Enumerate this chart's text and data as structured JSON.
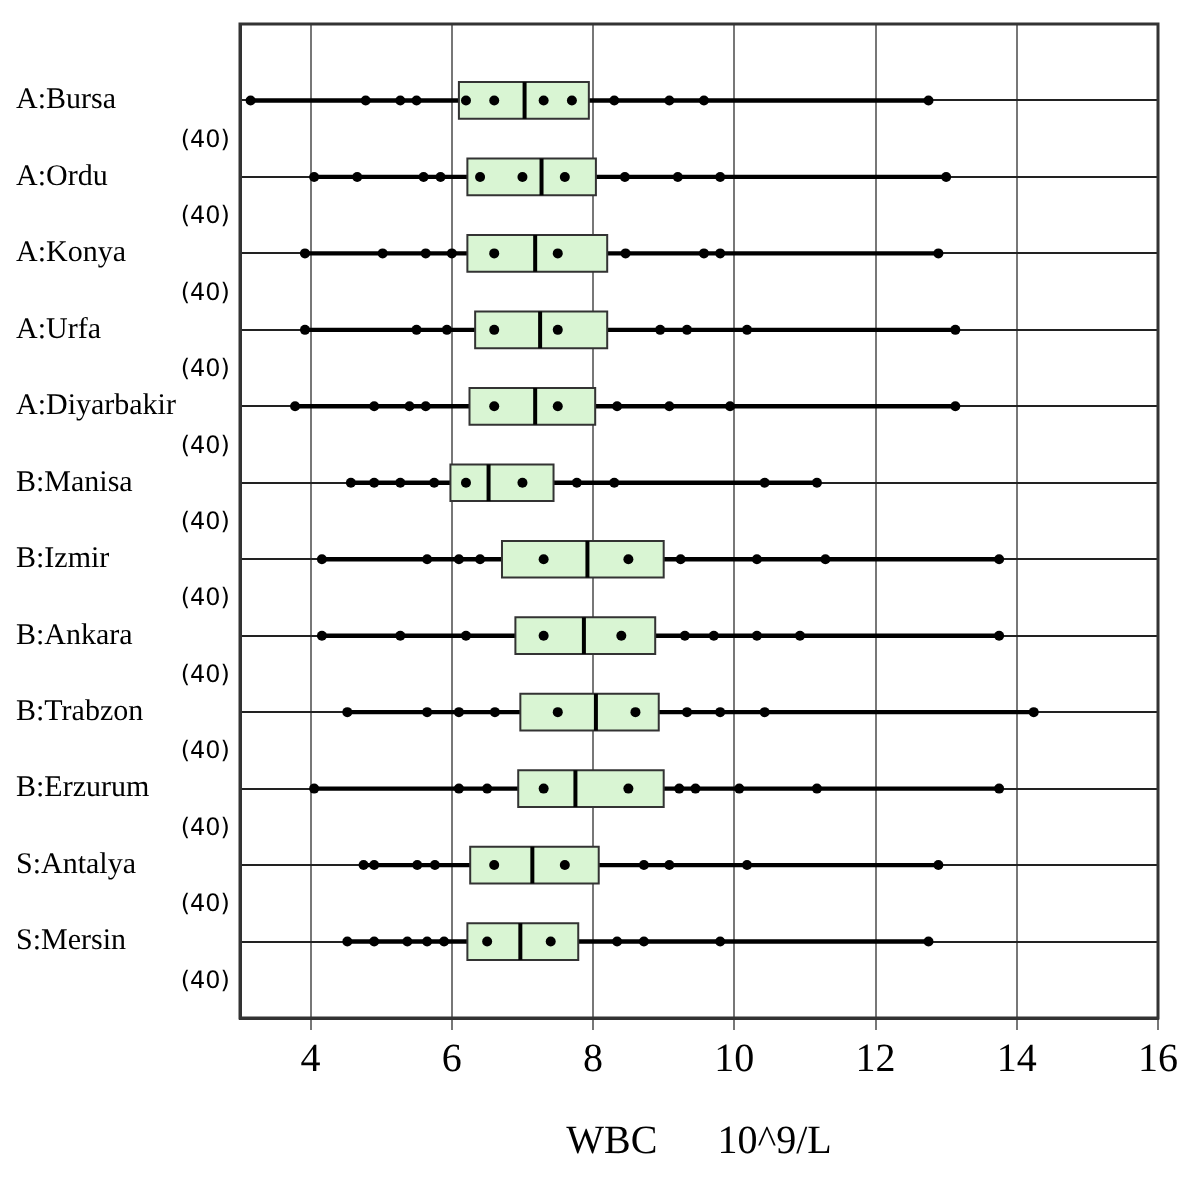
{
  "chart_data": {
    "type": "box",
    "orientation": "horizontal",
    "xlabel": "WBC      10^9/L",
    "categories": [
      "A:Bursa",
      "A:Ordu",
      "A:Konya",
      "A:Urfa",
      "A:Diyarbakir",
      "B:Manisa",
      "B:Izmir",
      "B:Ankara",
      "B:Trabzon",
      "B:Erzurum",
      "S:Antalya",
      "S:Mersin"
    ],
    "xlim": [
      3,
      16
    ],
    "xticks": [
      4,
      6,
      8,
      10,
      12,
      14,
      16
    ],
    "grid": true,
    "legend": false,
    "color": "#d9f5d3",
    "boxes": [
      {
        "low": 3.15,
        "q1": 6.1,
        "median": 7.03,
        "q3": 7.94,
        "high": 12.75
      },
      {
        "low": 4.05,
        "q1": 6.22,
        "median": 7.27,
        "q3": 8.04,
        "high": 13.0
      },
      {
        "low": 3.92,
        "q1": 6.22,
        "median": 7.18,
        "q3": 8.2,
        "high": 12.89
      },
      {
        "low": 3.92,
        "q1": 6.33,
        "median": 7.25,
        "q3": 8.2,
        "high": 13.13
      },
      {
        "low": 3.78,
        "q1": 6.25,
        "median": 7.18,
        "q3": 8.03,
        "high": 13.13
      },
      {
        "low": 4.57,
        "q1": 5.98,
        "median": 6.52,
        "q3": 7.44,
        "high": 11.17
      },
      {
        "low": 4.16,
        "q1": 6.71,
        "median": 7.92,
        "q3": 9.0,
        "high": 13.75
      },
      {
        "low": 4.16,
        "q1": 6.9,
        "median": 7.87,
        "q3": 8.88,
        "high": 13.75
      },
      {
        "low": 4.52,
        "q1": 6.97,
        "median": 8.04,
        "q3": 8.93,
        "high": 14.24
      },
      {
        "low": 4.05,
        "q1": 6.94,
        "median": 7.75,
        "q3": 9.0,
        "high": 13.75
      },
      {
        "low": 4.75,
        "q1": 6.26,
        "median": 7.14,
        "q3": 8.08,
        "high": 12.89
      },
      {
        "low": 4.52,
        "q1": 6.22,
        "median": 6.97,
        "q3": 7.79,
        "high": 12.75
      }
    ],
    "series": [
      {
        "type": "scatter",
        "color": "#000000",
        "marker": "circle",
        "x": [
          "A:Bursa",
          "A:Bursa",
          "A:Ordu",
          "A:Ordu",
          "A:Konya",
          "A:Konya",
          "A:Urfa",
          "A:Urfa",
          "A:Diyarbakir",
          "A:Diyarbakir",
          "B:Manisa",
          "B:Manisa",
          "B:Izmir",
          "B:Izmir",
          "B:Ankara",
          "B:Ankara",
          "B:Trabzon",
          "B:Trabzon",
          "B:Erzurum",
          "B:Erzurum",
          "S:Antalya",
          "S:Antalya",
          "S:Mersin",
          "S:Mersin",
          "A:Bursa",
          "A:Bursa",
          "A:Bursa",
          "A:Bursa",
          "A:Bursa",
          "A:Bursa",
          "A:Bursa",
          "A:Bursa",
          "A:Bursa",
          "A:Bursa",
          "A:Ordu",
          "A:Ordu",
          "A:Ordu",
          "A:Ordu",
          "A:Ordu",
          "A:Ordu",
          "A:Ordu",
          "A:Ordu",
          "A:Ordu",
          "A:Konya",
          "A:Konya",
          "A:Konya",
          "A:Konya",
          "A:Konya",
          "A:Konya",
          "A:Konya",
          "A:Konya",
          "A:Urfa",
          "A:Urfa",
          "A:Urfa",
          "A:Urfa",
          "A:Urfa",
          "A:Urfa",
          "A:Urfa",
          "A:Diyarbakir",
          "A:Diyarbakir",
          "A:Diyarbakir",
          "A:Diyarbakir",
          "A:Diyarbakir",
          "A:Diyarbakir",
          "A:Diyarbakir",
          "A:Diyarbakir",
          "B:Manisa",
          "B:Manisa",
          "B:Manisa",
          "B:Manisa",
          "B:Manisa",
          "B:Manisa",
          "B:Manisa",
          "B:Manisa",
          "B:Izmir",
          "B:Izmir",
          "B:Izmir",
          "B:Izmir",
          "B:Izmir",
          "B:Izmir",
          "B:Izmir",
          "B:Izmir",
          "B:Ankara",
          "B:Ankara",
          "B:Ankara",
          "B:Ankara",
          "B:Ankara",
          "B:Ankara",
          "B:Ankara",
          "B:Ankara",
          "B:Trabzon",
          "B:Trabzon",
          "B:Trabzon",
          "B:Trabzon",
          "B:Trabzon",
          "B:Trabzon",
          "B:Trabzon",
          "B:Trabzon",
          "B:Erzurum",
          "B:Erzurum",
          "B:Erzurum",
          "B:Erzurum",
          "B:Erzurum",
          "B:Erzurum",
          "B:Erzurum",
          "B:Erzurum",
          "S:Antalya",
          "S:Antalya",
          "S:Antalya",
          "S:Antalya",
          "S:Antalya",
          "S:Antalya",
          "S:Antalya",
          "S:Antalya",
          "S:Mersin",
          "S:Mersin",
          "S:Mersin",
          "S:Mersin",
          "S:Mersin",
          "S:Mersin",
          "S:Mersin",
          "S:Mersin",
          "S:Mersin"
        ],
        "values": [
          3.15,
          12.75,
          4.05,
          13.0,
          3.92,
          12.89,
          3.92,
          13.13,
          3.78,
          13.13,
          4.57,
          11.17,
          4.16,
          13.75,
          4.16,
          13.75,
          4.52,
          14.24,
          4.05,
          13.75,
          4.75,
          12.89,
          4.52,
          12.75,
          4.78,
          5.27,
          5.5,
          6.2,
          6.6,
          7.3,
          7.7,
          8.3,
          9.08,
          9.57,
          4.66,
          5.6,
          5.84,
          6.4,
          7.0,
          7.6,
          8.45,
          9.2,
          9.8,
          5.02,
          5.63,
          6.0,
          6.6,
          7.5,
          8.46,
          9.57,
          9.8,
          5.5,
          5.93,
          6.6,
          7.5,
          8.95,
          9.33,
          10.18,
          4.9,
          5.4,
          5.63,
          6.6,
          7.5,
          8.34,
          9.08,
          9.94,
          4.9,
          5.27,
          5.75,
          6.2,
          7.0,
          7.77,
          8.3,
          10.43,
          5.65,
          6.1,
          6.4,
          7.3,
          8.5,
          9.24,
          10.32,
          11.29,
          5.27,
          6.2,
          7.3,
          8.4,
          9.3,
          9.71,
          10.32,
          10.93,
          5.65,
          6.1,
          6.61,
          7.5,
          8.6,
          9.33,
          9.8,
          10.43,
          6.1,
          6.5,
          7.3,
          8.5,
          9.22,
          9.45,
          10.07,
          11.17,
          4.9,
          5.51,
          5.76,
          6.6,
          7.6,
          8.72,
          9.08,
          10.18,
          4.9,
          5.37,
          5.65,
          5.89,
          6.5,
          7.4,
          8.34,
          8.72,
          9.8
        ]
      }
    ],
    "annotations": [
      "(40)",
      "(40)",
      "(40)",
      "(40)",
      "(40)",
      "(40)",
      "(40)",
      "(40)",
      "(40)",
      "(40)",
      "(40)",
      "(40)"
    ]
  }
}
